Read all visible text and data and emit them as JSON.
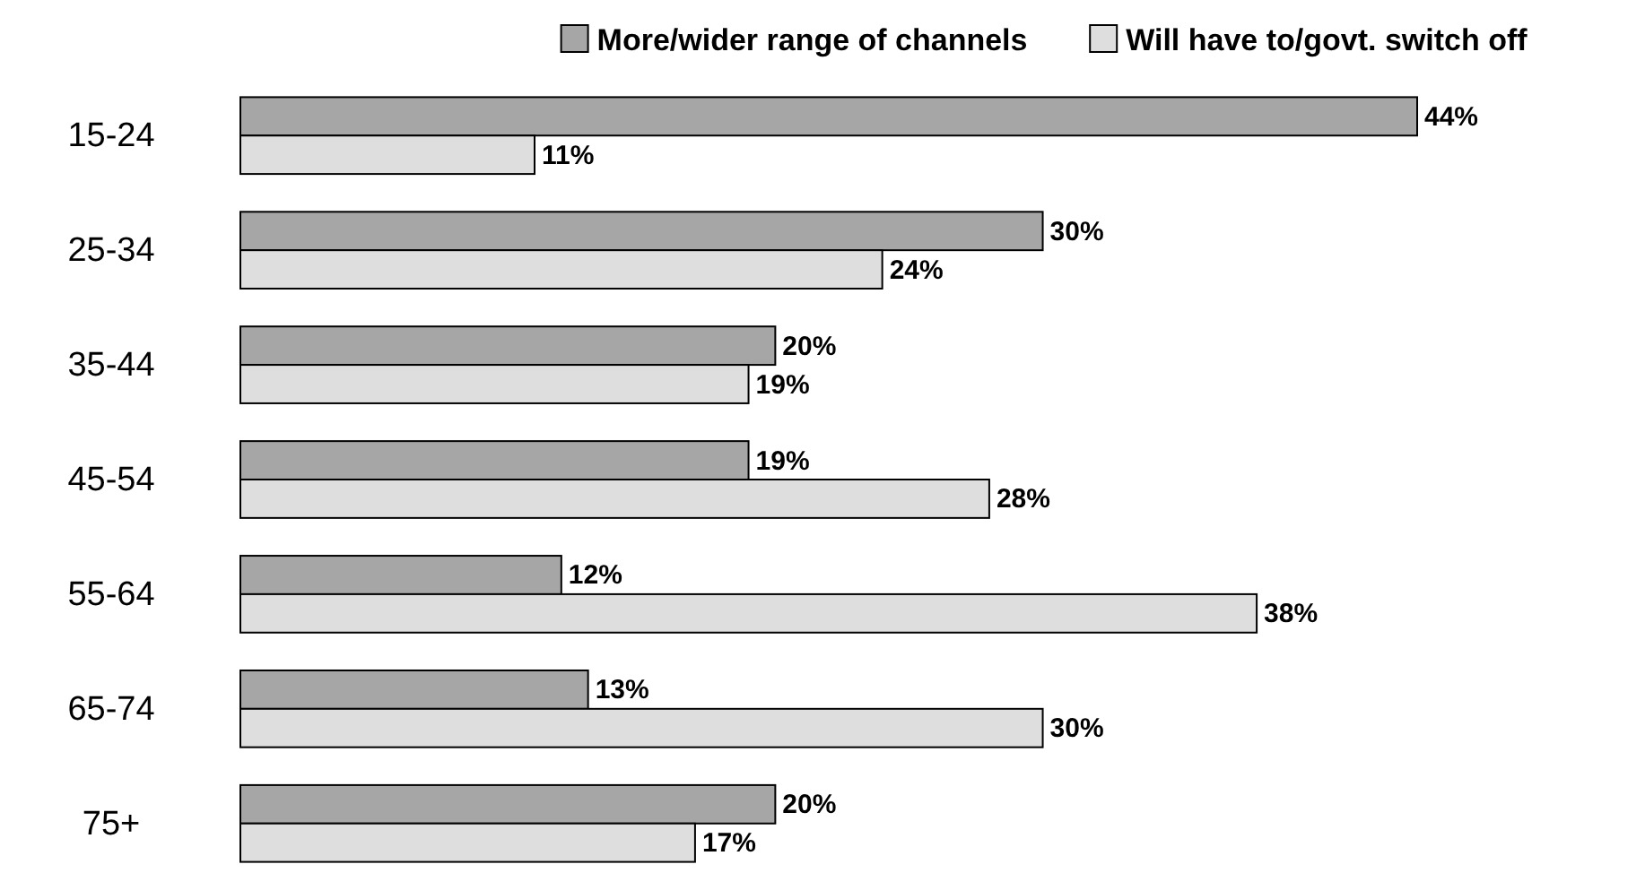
{
  "chart_data": {
    "type": "bar",
    "orientation": "horizontal",
    "categories": [
      "15-24",
      "25-34",
      "35-44",
      "45-54",
      "55-64",
      "65-74",
      "75+"
    ],
    "series": [
      {
        "name": "More/wider range of channels",
        "color": "#a6a6a6",
        "values": [
          44,
          30,
          20,
          19,
          12,
          13,
          20
        ],
        "value_labels": [
          "44%",
          "30%",
          "20%",
          "19%",
          "12%",
          "13%",
          "20%"
        ]
      },
      {
        "name": "Will have to/govt. switch off",
        "color": "#dedede",
        "values": [
          11,
          24,
          19,
          28,
          38,
          30,
          17
        ],
        "value_labels": [
          "11%",
          "24%",
          "19%",
          "28%",
          "38%",
          "30%",
          "17%"
        ]
      }
    ],
    "legend": "top right"
  }
}
